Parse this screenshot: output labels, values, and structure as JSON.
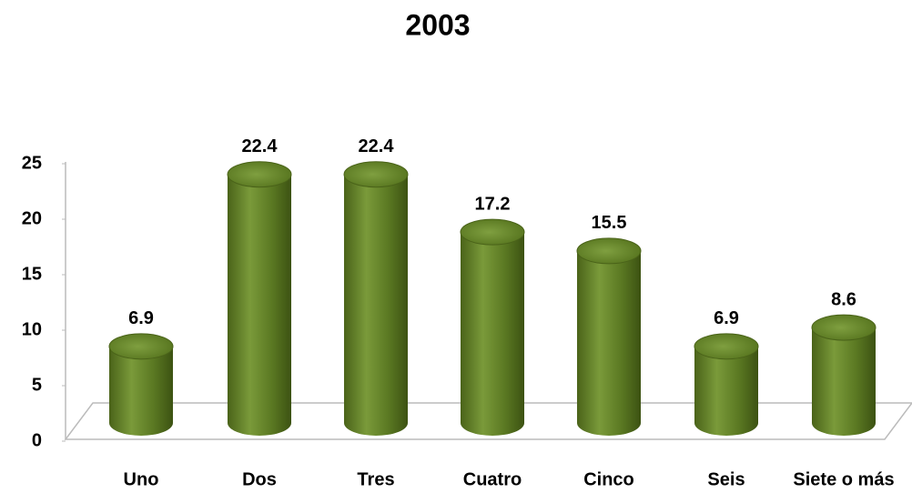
{
  "chart_data": {
    "type": "bar",
    "title": "2003",
    "categories": [
      "Uno",
      "Dos",
      "Tres",
      "Cuatro",
      "Cinco",
      "Seis",
      "Siete o más"
    ],
    "values": [
      6.9,
      22.4,
      22.4,
      17.2,
      15.5,
      6.9,
      8.6
    ],
    "color": "#5f7f26",
    "ylim": [
      0,
      25
    ],
    "yticks": [
      0,
      5,
      10,
      15,
      20,
      25
    ],
    "grid": false
  }
}
